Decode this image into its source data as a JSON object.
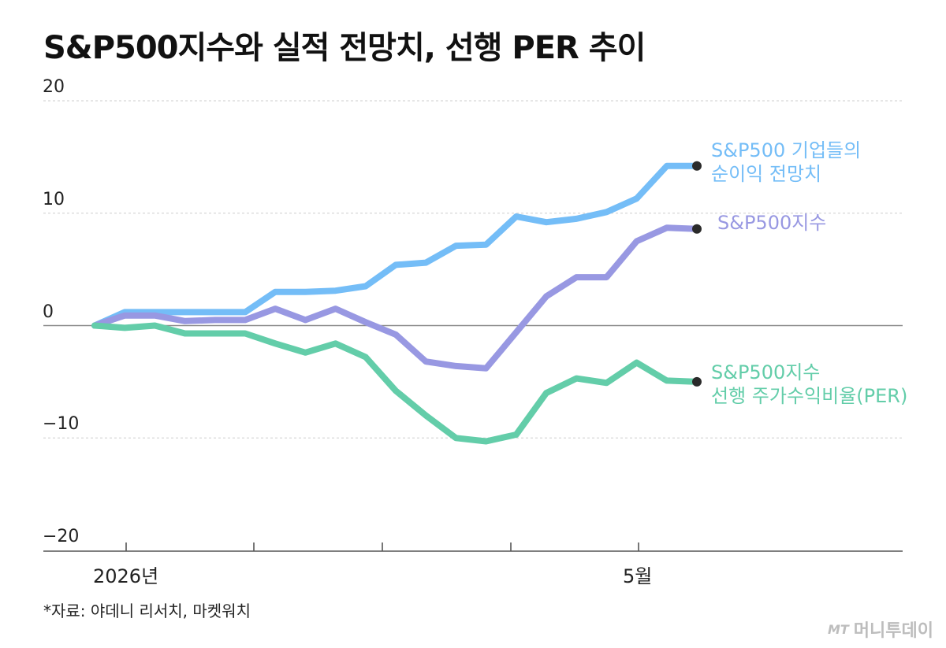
{
  "title": "S&P500지수와 실적 전망치, 선행 PER 추이",
  "source": "*자료: 야데니 리서치, 마켓워치",
  "logo": {
    "mark": "MT",
    "name": "머니투데이"
  },
  "chart_data": {
    "type": "line",
    "ylim": [
      -20,
      20
    ],
    "yticks": [
      "20",
      "10",
      "0",
      "−10",
      "−20"
    ],
    "xtick_labels": [
      {
        "label": "2026년",
        "index": 1
      },
      {
        "label": "5월",
        "index": 17
      }
    ],
    "grid": true,
    "series": [
      {
        "name": "S&P500 기업들의 순이익 전망치",
        "label_lines": [
          "S&P500 기업들의",
          "순이익 전망치"
        ],
        "color": "#74bdf7",
        "values": [
          0,
          1.2,
          1.2,
          1.2,
          1.2,
          1.2,
          3.0,
          3.0,
          3.1,
          3.5,
          5.4,
          5.6,
          7.1,
          7.2,
          9.7,
          9.2,
          9.5,
          10.1,
          11.3,
          14.2,
          14.2
        ]
      },
      {
        "name": "S&P500지수",
        "label_lines": [
          "S&P500지수"
        ],
        "color": "#9898e2",
        "values": [
          0,
          0.9,
          0.9,
          0.4,
          0.5,
          0.5,
          1.5,
          0.5,
          1.5,
          0.3,
          -0.8,
          -3.2,
          -3.6,
          -3.8,
          -0.6,
          2.6,
          4.3,
          4.3,
          7.5,
          8.7,
          8.6
        ]
      },
      {
        "name": "S&P500지수 선행 주가수익비율(PER)",
        "label_lines": [
          "S&P500지수",
          "선행 주가수익비율(PER)"
        ],
        "color": "#63cda9",
        "values": [
          0,
          -0.2,
          0,
          -0.7,
          -0.7,
          -0.7,
          -1.6,
          -2.4,
          -1.6,
          -2.8,
          -5.8,
          -8.0,
          -10.0,
          -10.3,
          -9.7,
          -6.0,
          -4.7,
          -5.1,
          -3.3,
          -4.9,
          -5.0
        ]
      }
    ]
  }
}
